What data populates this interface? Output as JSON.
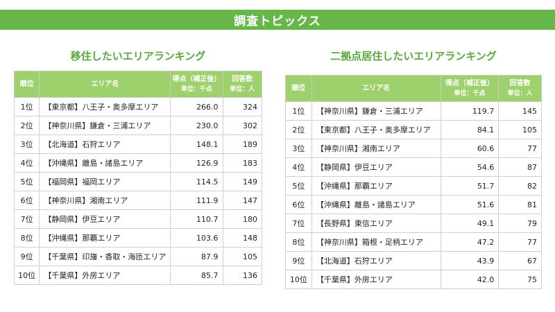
{
  "banner": "調査トピックス",
  "left": {
    "title": "移住したいエリアランキング",
    "headers": {
      "rank": "順位",
      "area": "エリア名",
      "score": "得点（補正後）",
      "score_unit": "単位：千点",
      "count": "回答数",
      "count_unit": "単位：人"
    },
    "rows": [
      {
        "rank": "1位",
        "area": "【東京都】八王子・奥多摩エリア",
        "score": "266.0",
        "count": "324"
      },
      {
        "rank": "2位",
        "area": "【神奈川県】鎌倉・三浦エリア",
        "score": "230.0",
        "count": "302"
      },
      {
        "rank": "3位",
        "area": "【北海道】石狩エリア",
        "score": "148.1",
        "count": "189"
      },
      {
        "rank": "4位",
        "area": "【沖縄県】離島・諸島エリア",
        "score": "126.9",
        "count": "183"
      },
      {
        "rank": "5位",
        "area": "【福岡県】福岡エリア",
        "score": "114.5",
        "count": "149"
      },
      {
        "rank": "6位",
        "area": "【神奈川県】湘南エリア",
        "score": "111.9",
        "count": "147"
      },
      {
        "rank": "7位",
        "area": "【静岡県】伊豆エリア",
        "score": "110.7",
        "count": "180"
      },
      {
        "rank": "8位",
        "area": "【沖縄県】那覇エリア",
        "score": "103.6",
        "count": "148"
      },
      {
        "rank": "9位",
        "area": "【千葉県】印旛・香取・海匝エリア",
        "score": "87.9",
        "count": "105"
      },
      {
        "rank": "10位",
        "area": "【千葉県】外房エリア",
        "score": "85.7",
        "count": "136"
      }
    ]
  },
  "right": {
    "title": "二拠点居住したいエリアランキング",
    "headers": {
      "rank": "順位",
      "area": "エリア名",
      "score": "得点（補正後）",
      "score_unit": "単位：千点",
      "count": "回答数",
      "count_unit": "単位：人"
    },
    "rows": [
      {
        "rank": "1位",
        "area": "【神奈川県】鎌倉・三浦エリア",
        "score": "119.7",
        "count": "145"
      },
      {
        "rank": "2位",
        "area": "【東京都】八王子・奥多摩エリア",
        "score": "84.1",
        "count": "105"
      },
      {
        "rank": "3位",
        "area": "【神奈川県】湘南エリア",
        "score": "60.6",
        "count": "77"
      },
      {
        "rank": "4位",
        "area": "【静岡県】伊豆エリア",
        "score": "54.6",
        "count": "87"
      },
      {
        "rank": "5位",
        "area": "【沖縄県】那覇エリア",
        "score": "51.7",
        "count": "82"
      },
      {
        "rank": "6位",
        "area": "【沖縄県】離島・諸島エリア",
        "score": "51.6",
        "count": "81"
      },
      {
        "rank": "7位",
        "area": "【長野県】東信エリア",
        "score": "49.1",
        "count": "79"
      },
      {
        "rank": "8位",
        "area": "【神奈川県】箱根・足柄エリア",
        "score": "47.2",
        "count": "77"
      },
      {
        "rank": "9位",
        "area": "【北海道】石狩エリア",
        "score": "43.9",
        "count": "67"
      },
      {
        "rank": "10位",
        "area": "【千葉県】外房エリア",
        "score": "42.0",
        "count": "75"
      }
    ]
  }
}
